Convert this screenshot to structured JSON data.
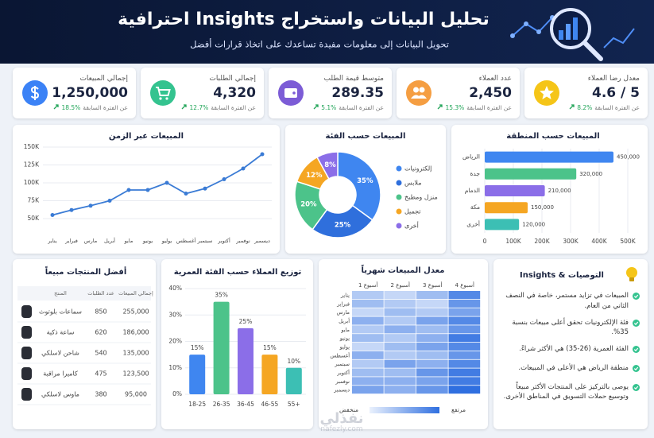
{
  "header": {
    "title": "تحليل البيانات واستخراج Insights احترافية",
    "subtitle": "تحويل البيانات إلى معلومات مفيدة تساعدك على اتخاذ قرارات أفضل"
  },
  "kpis": [
    {
      "label": "معدل رضا العملاء",
      "value": "4.6 / 5",
      "change": "8.2%",
      "note": "عن الفترة السابقة"
    },
    {
      "label": "عدد العملاء",
      "value": "2,450",
      "change": "15.3%",
      "note": "عن الفترة السابقة"
    },
    {
      "label": "متوسط قيمة الطلب",
      "value": "289.35",
      "change": "5.1%",
      "note": "عن الفترة السابقة"
    },
    {
      "label": "إجمالي الطلبات",
      "value": "4,320",
      "change": "12.7%",
      "note": "عن الفترة السابقة"
    },
    {
      "label": "إجمالي المبيعات",
      "value": "1,250,000",
      "change": "18.5%",
      "note": "عن الفترة السابقة"
    }
  ],
  "chart_data": [
    {
      "type": "line",
      "title": "المبيعات عبر الزمن",
      "categories": [
        "يناير",
        "فبراير",
        "مارس",
        "أبريل",
        "مايو",
        "يونيو",
        "يوليو",
        "أغسطس",
        "سبتمبر",
        "أكتوبر",
        "نوفمبر",
        "ديسمبر"
      ],
      "values": [
        55000,
        62000,
        68000,
        75000,
        90000,
        90000,
        100000,
        85000,
        92000,
        105000,
        120000,
        140000
      ],
      "color": "#3a7bd5",
      "ylim": [
        40000,
        150000
      ],
      "yticks": [
        {
          "value": 50000,
          "label": "50K"
        },
        {
          "value": 75000,
          "label": "75K"
        },
        {
          "value": 100000,
          "label": "100K"
        },
        {
          "value": 125000,
          "label": "125K"
        },
        {
          "value": 150000,
          "label": "150K"
        }
      ],
      "grid": true
    },
    {
      "type": "pie",
      "title": "المبيعات حسب الفئة",
      "categories": [
        "إلكترونيات",
        "ملابس",
        "منزل ومطبخ",
        "تجميل",
        "أخرى"
      ],
      "values": [
        35,
        25,
        20,
        12,
        8
      ],
      "value_labels": [
        "35%",
        "25%",
        "20%",
        "12%",
        "8%"
      ],
      "colors": [
        "#3f86f0",
        "#2f6fdc",
        "#4cc38a",
        "#f5a623",
        "#8b6ee8"
      ]
    },
    {
      "type": "hbar",
      "title": "المبيعات حسب المنطقة",
      "categories": [
        "الرياض",
        "جدة",
        "الدمام",
        "مكة",
        "أخرى"
      ],
      "values": [
        450000,
        320000,
        210000,
        150000,
        120000
      ],
      "value_labels": [
        "450,000",
        "320,000",
        "210,000",
        "150,000",
        "120,000"
      ],
      "colors": [
        "#3f86f0",
        "#4cc38a",
        "#8b6ee8",
        "#f5a623",
        "#3cbfb4"
      ],
      "xlim": [
        0,
        500000
      ],
      "xticks": [
        0,
        {
          "value": 100000,
          "label": "100K"
        },
        {
          "value": 200000,
          "label": "200K"
        },
        {
          "value": 300000,
          "label": "300K"
        },
        {
          "value": 400000,
          "label": "400K"
        },
        {
          "value": 500000,
          "label": "500K"
        }
      ],
      "grid": true
    },
    {
      "type": "bar",
      "title": "توزيع العملاء حسب الفئة العمرية",
      "categories": [
        "18-25",
        "26-35",
        "36-45",
        "46-55",
        "55+"
      ],
      "values": [
        15,
        35,
        25,
        15,
        10
      ],
      "value_labels": [
        "15%",
        "35%",
        "25%",
        "15%",
        "10%"
      ],
      "colors": [
        "#3f86f0",
        "#4cc38a",
        "#8b6ee8",
        "#f5a623",
        "#3cbfb4"
      ],
      "ylim": [
        0,
        40
      ],
      "yticks": [
        {
          "value": 0,
          "label": "0%"
        },
        {
          "value": 10,
          "label": "10%"
        },
        {
          "value": 20,
          "label": "20%"
        },
        {
          "value": 30,
          "label": "30%"
        },
        {
          "value": 40,
          "label": "40%"
        }
      ],
      "grid": true
    },
    {
      "type": "heatmap",
      "title": "معدل المبيعات شهرياً",
      "categories": [
        "يناير",
        "فبراير",
        "مارس",
        "أبريل",
        "مايو",
        "يونيو",
        "يوليو",
        "أغسطس",
        "سبتمبر",
        "أكتوبر",
        "نوفمبر",
        "ديسمبر"
      ],
      "series": [
        {
          "name": "أسبوع 1",
          "values": [
            3,
            4,
            2,
            5,
            3,
            4,
            2,
            5,
            3,
            4,
            5,
            6
          ]
        },
        {
          "name": "أسبوع 2",
          "values": [
            2,
            3,
            4,
            3,
            5,
            3,
            4,
            3,
            6,
            4,
            5,
            5
          ]
        },
        {
          "name": "أسبوع 3",
          "values": [
            4,
            2,
            3,
            6,
            4,
            5,
            6,
            4,
            5,
            7,
            6,
            7
          ]
        },
        {
          "name": "أسبوع 4",
          "values": [
            8,
            7,
            6,
            8,
            7,
            9,
            8,
            7,
            8,
            9,
            9,
            10
          ]
        }
      ],
      "colormap": [
        "#eaf1fd",
        "#2f6fe0"
      ],
      "clim": [
        0,
        10
      ],
      "legend_labels": [
        "منخفض",
        "مرتفع"
      ]
    }
  ],
  "table": {
    "title": "أفضل المنتجات مبيعاً",
    "columns": [
      "المنتج",
      "عدد الطلبات",
      "إجمالي المبيعات"
    ],
    "rows": [
      [
        "سماعات بلوتوث",
        "850",
        "255,000"
      ],
      [
        "ساعة ذكية",
        "620",
        "186,000"
      ],
      [
        "شاحن لاسلكي",
        "540",
        "135,000"
      ],
      [
        "كاميرا مراقبة",
        "475",
        "123,500"
      ],
      [
        "ماوس لاسلكي",
        "380",
        "95,000"
      ]
    ]
  },
  "insights": {
    "title": "التوصيات & Insights",
    "items": [
      "المبيعات في تزايد مستمر، خاصة في النصف الثاني من العام.",
      "فئة الإلكترونيات تحقق أعلى مبيعات بنسبة 35%.",
      "الفئة العمرية (26-35) هي الأكثر شراءً.",
      "منطقة الرياض هي الأعلى في المبيعات.",
      "يوصى بالتركيز على المنتجات الأكثر مبيعاً وتوسيع حملات التسويق في المناطق الأخرى."
    ]
  },
  "watermark": {
    "logo": "نفذلي",
    "url": "nafezly.com"
  }
}
